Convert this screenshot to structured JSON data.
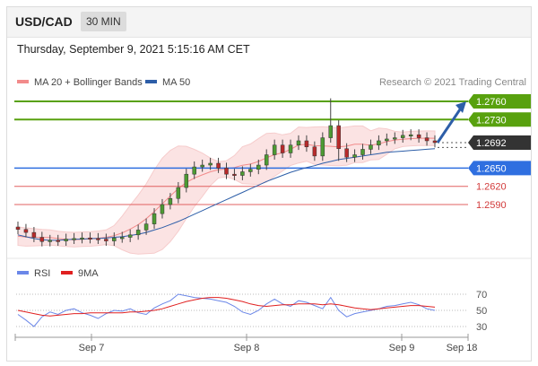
{
  "header": {
    "symbol": "USD/CAD",
    "timeframe": "30 MIN"
  },
  "datetime": "Thursday, September 9, 2021 5:15:16 AM CET",
  "legend": {
    "bollinger_label": "MA 20 + Bollinger Bands",
    "ma50_label": "MA 50",
    "credit": "Research © 2021 Trading Central",
    "bollinger_color": "#f28b8b",
    "ma50_color": "#2d5ea8"
  },
  "rsi_legend": {
    "rsi_label": "RSI",
    "ma_label": "9MA",
    "rsi_color": "#6b87e8",
    "ma_color": "#e02020"
  },
  "colors": {
    "resistance": "#58a10e",
    "support_blue": "#2f6fe0",
    "support_red": "#e26060",
    "last_price": "#333333",
    "arrow": "#2d5ea8",
    "candle_up": "#4d9a33",
    "candle_down": "#b82a2a"
  },
  "chart_data": [
    {
      "type": "candlestick",
      "title": "USD/CAD 30 MIN",
      "x_tick_labels": [
        "Sep 7",
        "Sep 8",
        "Sep 9",
        "Sep 18"
      ],
      "levels": [
        {
          "value": 1.276,
          "label": "1.2760",
          "kind": "resistance"
        },
        {
          "value": 1.273,
          "label": "1.2730",
          "kind": "resistance"
        },
        {
          "value": 1.2692,
          "label": "1.2692",
          "kind": "last"
        },
        {
          "value": 1.265,
          "label": "1.2650",
          "kind": "pivot"
        },
        {
          "value": 1.262,
          "label": "1.2620",
          "kind": "support"
        },
        {
          "value": 1.259,
          "label": "1.2590",
          "kind": "support"
        }
      ],
      "close_series": [
        1.2549,
        1.2544,
        1.2536,
        1.2529,
        1.2531,
        1.253,
        1.2533,
        1.2534,
        1.2535,
        1.2534,
        1.2533,
        1.253,
        1.2535,
        1.2536,
        1.254,
        1.2548,
        1.2558,
        1.2575,
        1.259,
        1.26,
        1.2618,
        1.264,
        1.2652,
        1.2655,
        1.2658,
        1.265,
        1.264,
        1.2638,
        1.2644,
        1.2648,
        1.2655,
        1.2672,
        1.2688,
        1.2675,
        1.2688,
        1.2695,
        1.2685,
        1.267,
        1.27,
        1.272,
        1.2682,
        1.2668,
        1.2672,
        1.2681,
        1.2688,
        1.2695,
        1.2698,
        1.27,
        1.2704,
        1.2705,
        1.27,
        1.2695,
        1.2692
      ],
      "ma50_series": [
        1.254,
        1.2537,
        1.2534,
        1.2532,
        1.2531,
        1.2531,
        1.2532,
        1.2533,
        1.2533,
        1.2534,
        1.2534,
        1.2535,
        1.2536,
        1.2537,
        1.2539,
        1.2541,
        1.2544,
        1.2548,
        1.2552,
        1.2557,
        1.2562,
        1.2568,
        1.2574,
        1.258,
        1.2586,
        1.2592,
        1.2598,
        1.2604,
        1.261,
        1.2616,
        1.2622,
        1.2628,
        1.2633,
        1.2638,
        1.2643,
        1.2647,
        1.2651,
        1.2654,
        1.2658,
        1.2661,
        1.2664,
        1.2666,
        1.2668,
        1.267,
        1.2672,
        1.2674,
        1.2676,
        1.2677,
        1.2678,
        1.2679,
        1.268,
        1.2681,
        1.2682
      ],
      "forecast_target": 1.276,
      "ylim": [
        1.2515,
        1.2775
      ]
    },
    {
      "type": "line",
      "title": "RSI",
      "series": [
        {
          "name": "RSI",
          "values": [
            45,
            38,
            30,
            42,
            48,
            45,
            50,
            52,
            47,
            44,
            40,
            46,
            50,
            49,
            52,
            47,
            45,
            53,
            58,
            62,
            70,
            68,
            66,
            65,
            64,
            62,
            60,
            55,
            48,
            45,
            50,
            58,
            64,
            58,
            55,
            62,
            60,
            56,
            52,
            66,
            50,
            42,
            46,
            48,
            50,
            52,
            55,
            56,
            58,
            60,
            57,
            52,
            50
          ]
        },
        {
          "name": "9MA",
          "values": [
            50,
            48,
            46,
            44,
            43,
            44,
            45,
            46,
            46,
            47,
            47,
            47,
            47,
            47,
            48,
            48,
            49,
            50,
            52,
            55,
            58,
            61,
            63,
            65,
            66,
            66,
            65,
            63,
            61,
            58,
            56,
            55,
            56,
            57,
            57,
            58,
            58,
            58,
            57,
            58,
            57,
            55,
            53,
            52,
            51,
            52,
            53,
            54,
            55,
            56,
            56,
            55,
            54
          ]
        }
      ],
      "levels": [
        70,
        50,
        30
      ]
    }
  ]
}
